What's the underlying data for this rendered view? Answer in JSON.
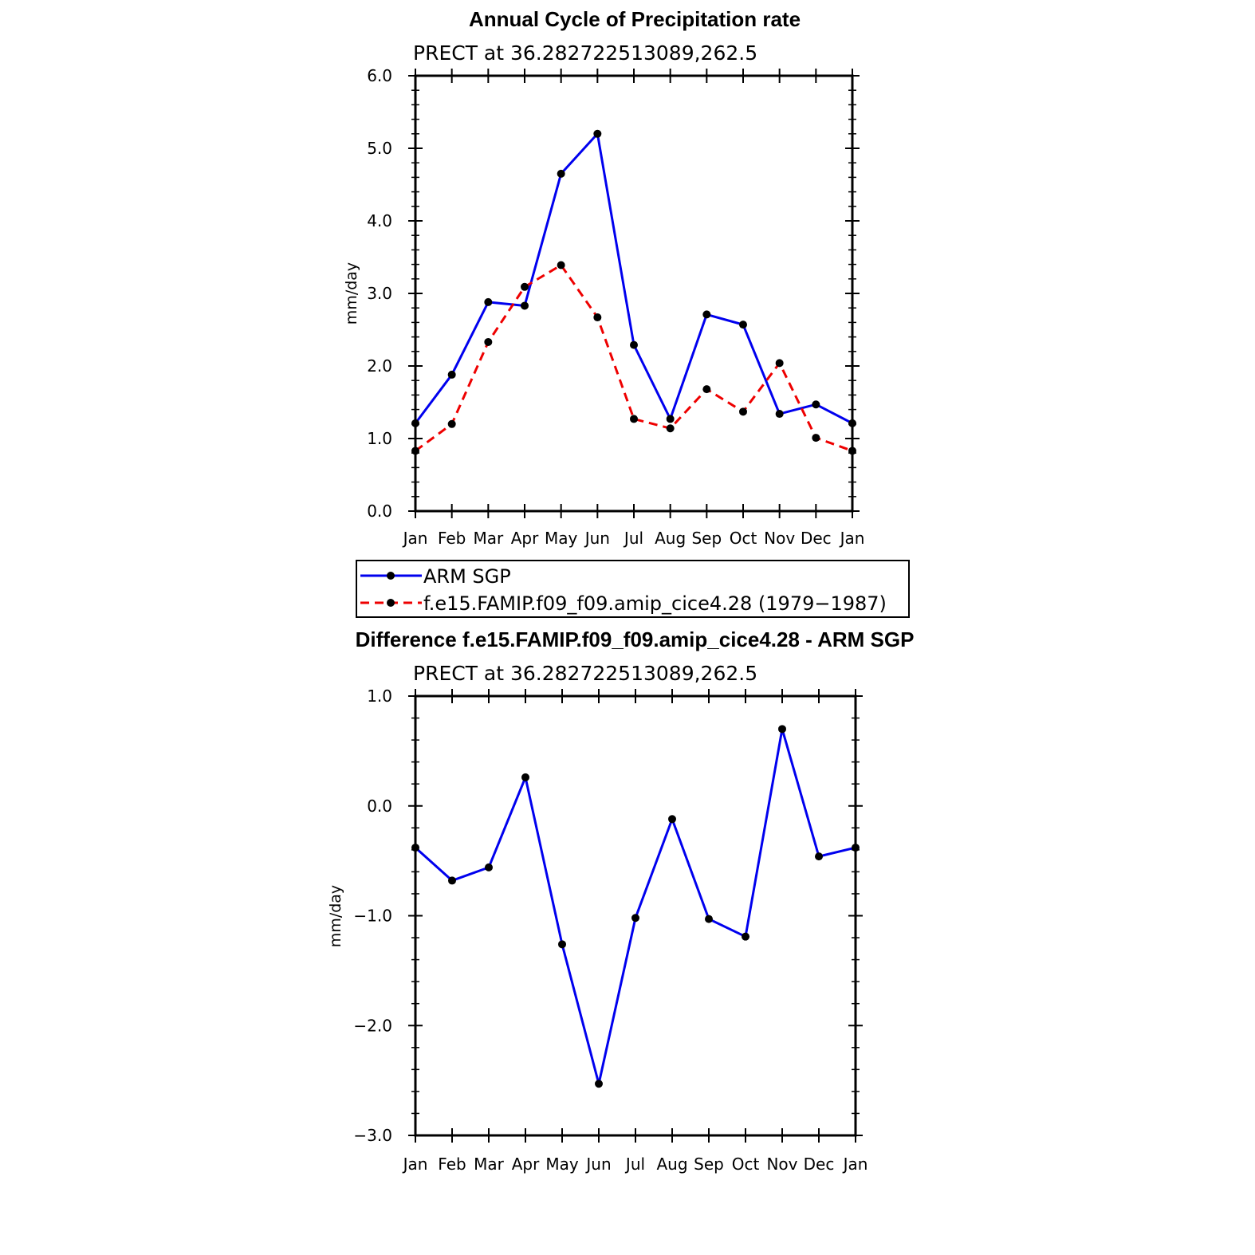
{
  "chart_data": [
    {
      "type": "line",
      "title": "Annual Cycle of Precipitation rate",
      "subtitle": "PRECT at 36.282722513089,262.5",
      "xlabel": "",
      "ylabel": "mm/day",
      "categories": [
        "Jan",
        "Feb",
        "Mar",
        "Apr",
        "May",
        "Jun",
        "Jul",
        "Aug",
        "Sep",
        "Oct",
        "Nov",
        "Dec",
        "Jan"
      ],
      "ylim": [
        0.0,
        6.0
      ],
      "yticks": [
        0.0,
        1.0,
        2.0,
        3.0,
        4.0,
        5.0,
        6.0
      ],
      "ytick_labels": [
        "0.0",
        "1.0",
        "2.0",
        "3.0",
        "4.0",
        "5.0",
        "6.0"
      ],
      "series": [
        {
          "name": "ARM SGP",
          "color": "#0000ee",
          "dash": "solid",
          "values": [
            1.21,
            1.88,
            2.88,
            2.83,
            4.65,
            5.2,
            2.29,
            1.27,
            2.71,
            2.57,
            1.34,
            1.47,
            1.21
          ]
        },
        {
          "name": "f.e15.FAMIP.f09_f09.amip_cice4.28 (1979−1987)",
          "color": "#ee0000",
          "dash": "dashed",
          "values": [
            0.83,
            1.2,
            2.33,
            3.09,
            3.39,
            2.67,
            1.27,
            1.14,
            1.68,
            1.37,
            2.04,
            1.01,
            0.83
          ]
        }
      ],
      "legend": "below"
    },
    {
      "type": "line",
      "title": "Difference f.e15.FAMIP.f09_f09.amip_cice4.28 - ARM SGP",
      "subtitle": "PRECT at 36.282722513089,262.5",
      "xlabel": "",
      "ylabel": "mm/day",
      "categories": [
        "Jan",
        "Feb",
        "Mar",
        "Apr",
        "May",
        "Jun",
        "Jul",
        "Aug",
        "Sep",
        "Oct",
        "Nov",
        "Dec",
        "Jan"
      ],
      "ylim": [
        -3.0,
        1.0
      ],
      "yticks": [
        -3.0,
        -2.0,
        -1.0,
        0.0,
        1.0
      ],
      "ytick_labels": [
        "−3.0",
        "−2.0",
        "−1.0",
        "0.0",
        "1.0"
      ],
      "series": [
        {
          "name": "Difference",
          "color": "#0000ee",
          "dash": "solid",
          "values": [
            -0.38,
            -0.68,
            -0.56,
            0.26,
            -1.26,
            -2.53,
            -1.02,
            -0.12,
            -1.03,
            -1.19,
            0.7,
            -0.46,
            -0.38
          ]
        }
      ]
    }
  ]
}
